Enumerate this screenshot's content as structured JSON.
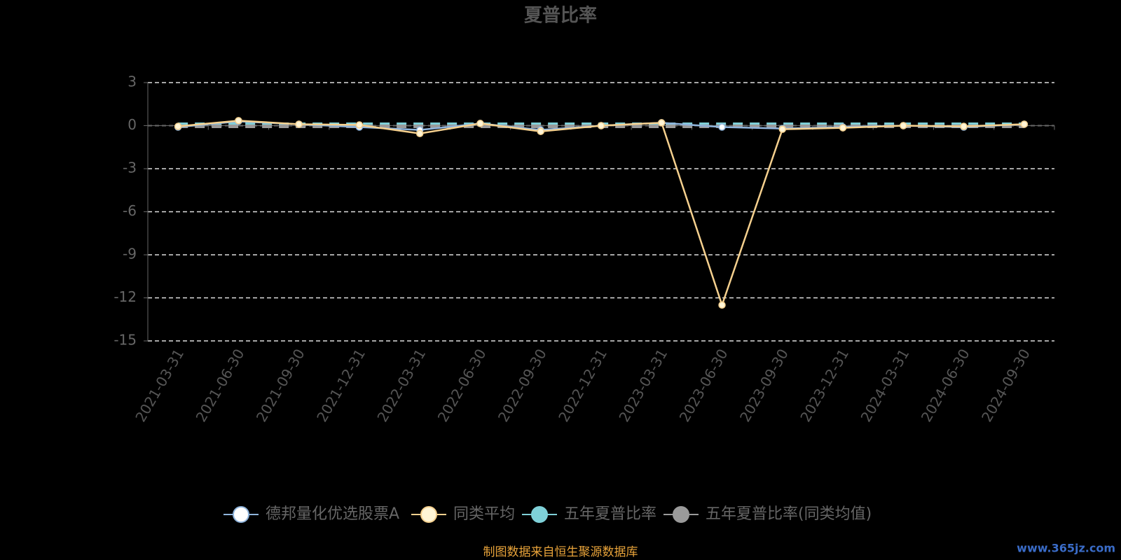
{
  "chart_data": {
    "type": "line",
    "title": "夏普比率",
    "categories": [
      "2021-03-31",
      "2021-06-30",
      "2021-09-30",
      "2021-12-31",
      "2022-03-31",
      "2022-06-30",
      "2022-09-30",
      "2022-12-31",
      "2023-03-31",
      "2023-06-30",
      "2023-09-30",
      "2023-12-31",
      "2024-03-31",
      "2024-06-30",
      "2024-09-30"
    ],
    "series": [
      {
        "name": "德邦量化优选股票A",
        "color": "#8fb4dc",
        "values": [
          -0.1,
          0.3,
          0.1,
          -0.1,
          -0.3,
          0.15,
          -0.3,
          0.0,
          0.2,
          -0.1,
          -0.2,
          -0.1,
          0.0,
          -0.1,
          0.1
        ]
      },
      {
        "name": "同类平均",
        "color": "#f5d08e",
        "values": [
          -0.05,
          0.35,
          0.1,
          0.05,
          -0.55,
          0.15,
          -0.4,
          0.0,
          0.2,
          -12.5,
          -0.25,
          -0.15,
          0.0,
          -0.05,
          0.1
        ]
      },
      {
        "name": "五年夏普比率",
        "color": "#7fd0d8",
        "values": [
          0.1,
          0.1,
          0.1,
          0.1,
          0.1,
          0.1,
          0.1,
          0.1,
          0.1,
          0.1,
          0.1,
          0.1,
          0.1,
          0.1,
          0.1
        ]
      },
      {
        "name": "五年夏普比率(同类均值)",
        "color": "#9a9a9a",
        "values": [
          -0.05,
          -0.05,
          -0.05,
          -0.05,
          -0.05,
          -0.05,
          -0.05,
          -0.05,
          -0.05,
          -0.05,
          -0.05,
          -0.05,
          -0.05,
          -0.05,
          -0.05
        ]
      }
    ],
    "ylim": [
      -15,
      3
    ],
    "yticks": [
      -15,
      -12,
      -9,
      -6,
      -3,
      0,
      3
    ],
    "grid": true,
    "legend": "bottom",
    "source_note": "制图数据来自恒生聚源数据库",
    "watermark": "www.365jz.com"
  }
}
